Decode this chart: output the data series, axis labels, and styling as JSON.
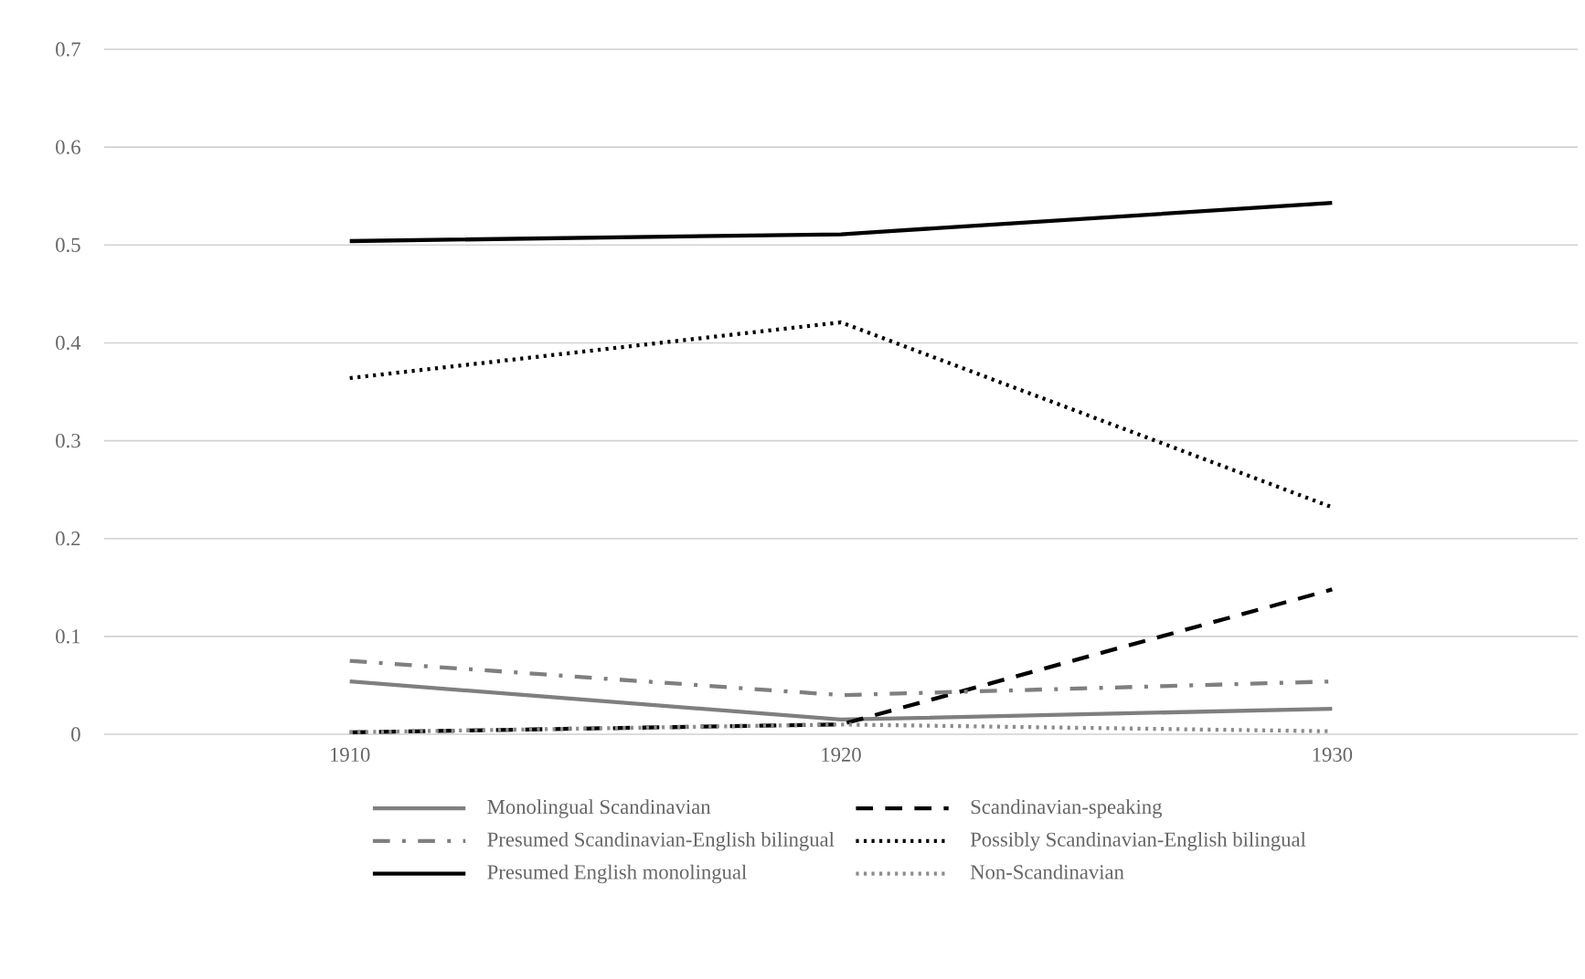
{
  "chart_data": {
    "type": "line",
    "categories": [
      "1910",
      "1920",
      "1930"
    ],
    "ylim": [
      0,
      0.7
    ],
    "yticks": [
      0,
      0.1,
      0.2,
      0.3,
      0.4,
      0.5,
      0.6,
      0.7
    ],
    "grid": "y",
    "legend": "bottom",
    "marker": "none",
    "series": [
      {
        "name": "Monolingual Scandinavian",
        "color": "#7f7f7f",
        "line_style": "solid",
        "values": [
          0.054,
          0.015,
          0.026
        ]
      },
      {
        "name": "Scandinavian-speaking",
        "color": "#000000",
        "line_style": "dashed",
        "values": [
          0.002,
          0.01,
          0.148
        ]
      },
      {
        "name": "Presumed Scandinavian-English bilingual",
        "color": "#7f7f7f",
        "line_style": "dashdot",
        "values": [
          0.075,
          0.04,
          0.054
        ]
      },
      {
        "name": "Possibly Scandinavian-English bilingual",
        "color": "#000000",
        "line_style": "dotted",
        "values": [
          0.364,
          0.421,
          0.232
        ]
      },
      {
        "name": "Presumed English monolingual",
        "color": "#000000",
        "line_style": "solid",
        "values": [
          0.504,
          0.511,
          0.543
        ]
      },
      {
        "name": "Non-Scandinavian",
        "color": "#8c8c8c",
        "line_style": "dotted",
        "values": [
          0.002,
          0.01,
          0.003
        ]
      }
    ]
  }
}
